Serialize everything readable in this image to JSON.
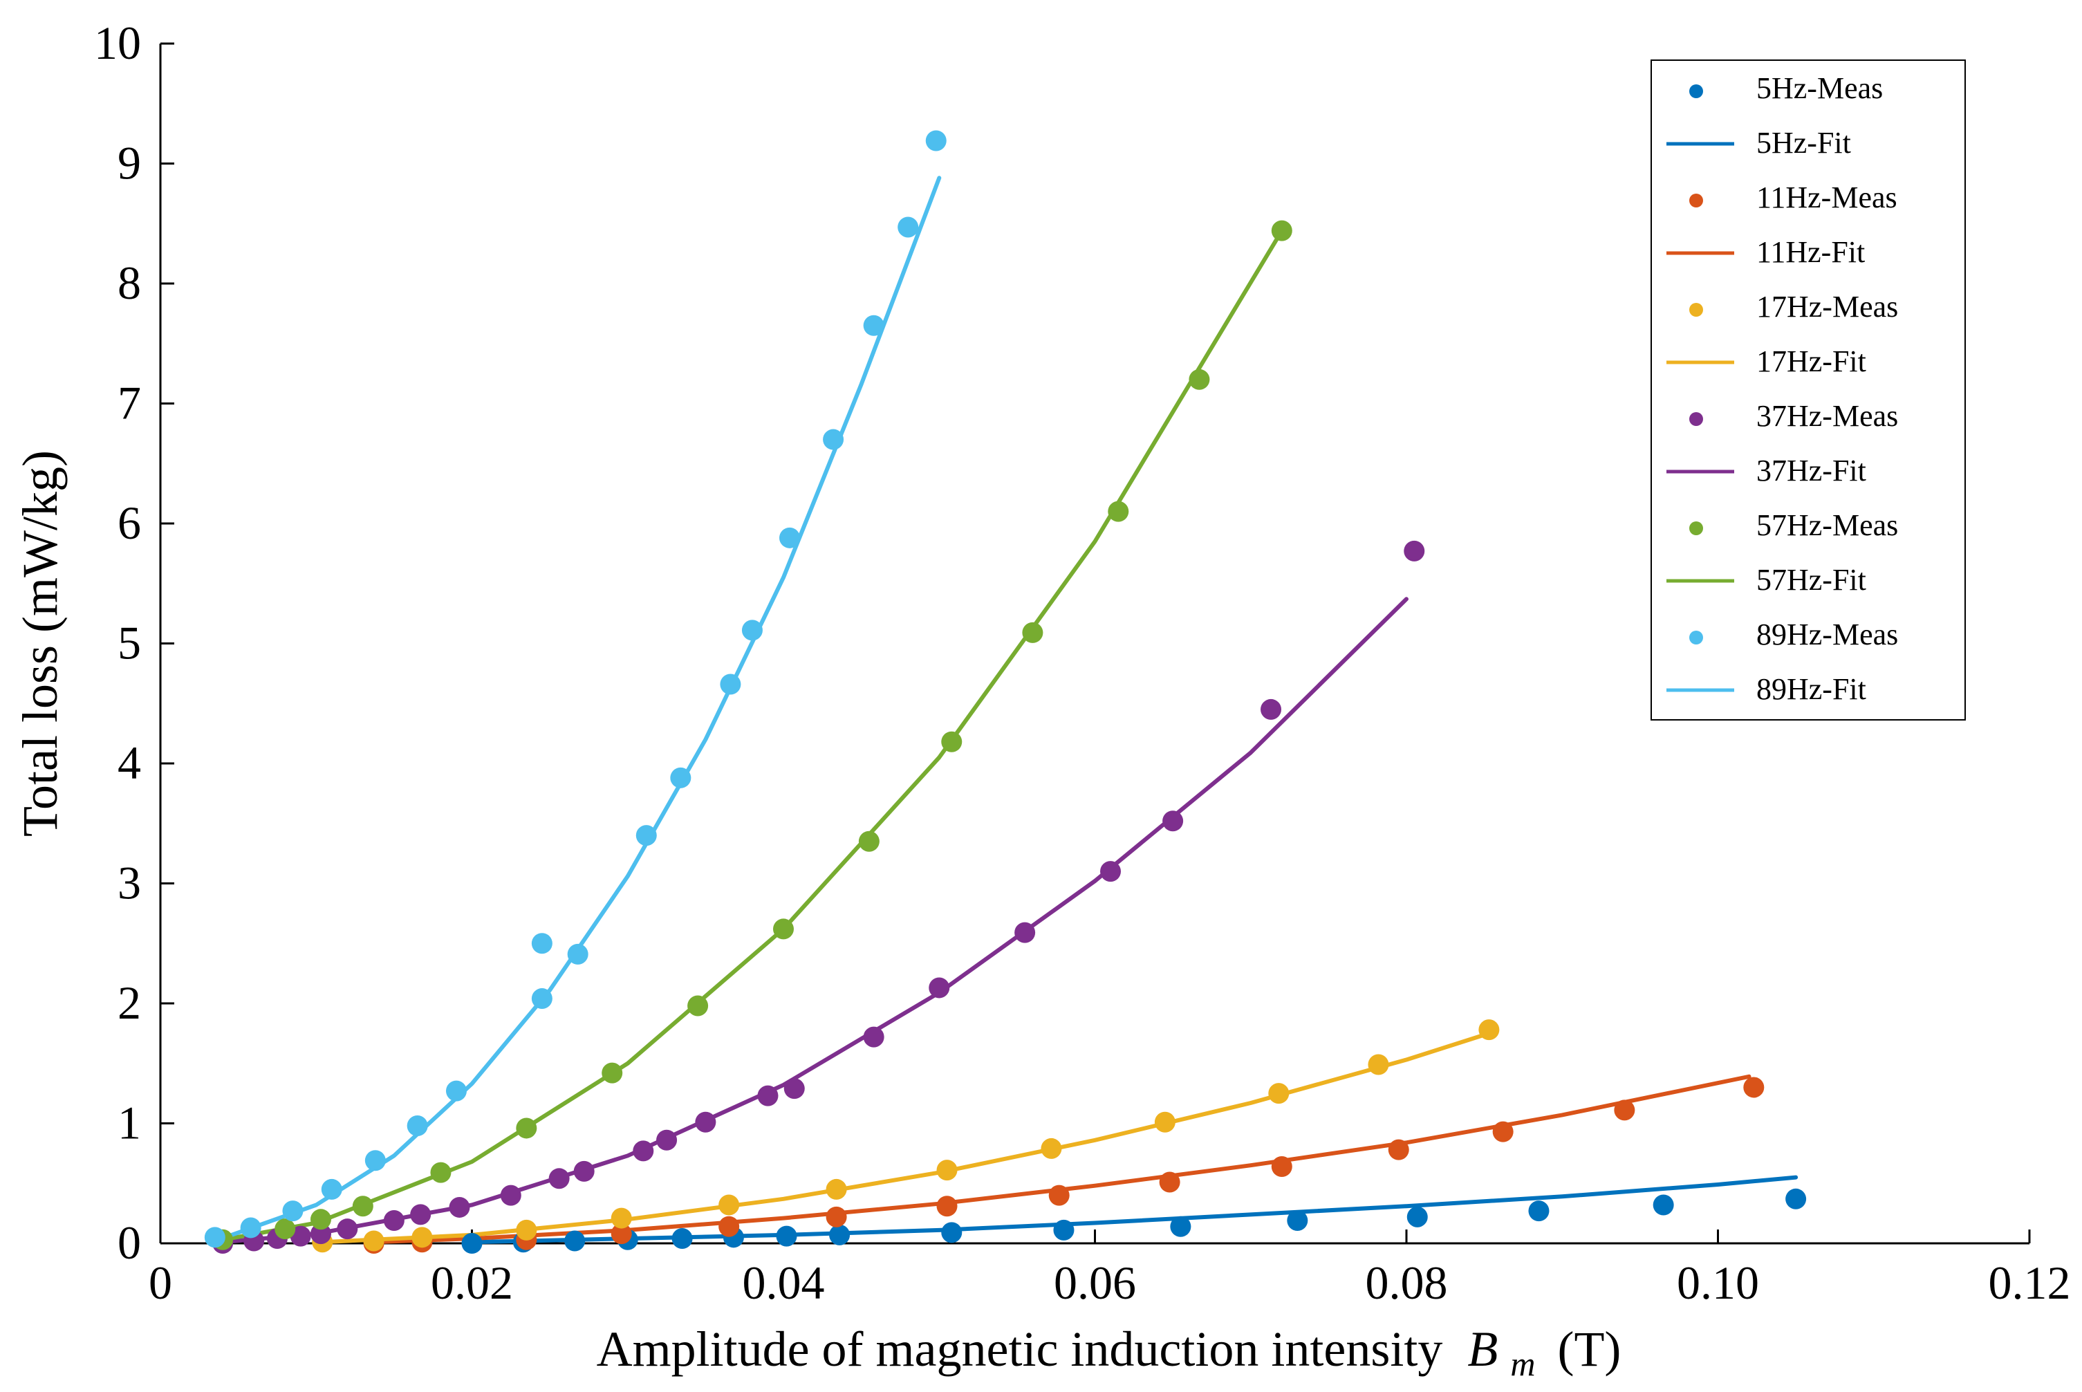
{
  "chart_data": {
    "type": "scatter",
    "xlabel_prefix": "Amplitude of magnetic induction intensity",
    "xlabel_var": "B",
    "xlabel_sub": "m",
    "xlabel_unit": "(T)",
    "ylabel": "Total loss (mW/kg)",
    "xlim": [
      0,
      0.12
    ],
    "ylim": [
      0,
      10
    ],
    "x_ticks": [
      0,
      0.02,
      0.04,
      0.06,
      0.08,
      0.1,
      0.12
    ],
    "x_tick_labels": [
      "0",
      "0.02",
      "0.04",
      "0.06",
      "0.08",
      "0.10",
      "0.12"
    ],
    "y_ticks": [
      0,
      1,
      2,
      3,
      4,
      5,
      6,
      7,
      8,
      9,
      10
    ],
    "y_tick_labels": [
      "0",
      "1",
      "2",
      "3",
      "4",
      "5",
      "6",
      "7",
      "8",
      "9",
      "10"
    ],
    "grid": false,
    "legend_position": "top-right",
    "series": [
      {
        "name": "5Hz",
        "meas_label": "5Hz-Meas",
        "fit_label": "5Hz-Fit",
        "color": "#0072BD",
        "x": [
          0.02,
          0.0233,
          0.0266,
          0.03,
          0.0335,
          0.0368,
          0.0402,
          0.0436,
          0.0508,
          0.058,
          0.0655,
          0.073,
          0.0807,
          0.0885,
          0.0965,
          0.105
        ],
        "y": [
          0.0,
          0.01,
          0.02,
          0.03,
          0.04,
          0.05,
          0.06,
          0.07,
          0.09,
          0.11,
          0.14,
          0.19,
          0.22,
          0.27,
          0.32,
          0.37
        ],
        "fit_x": [
          0.02,
          0.03,
          0.04,
          0.05,
          0.06,
          0.07,
          0.08,
          0.09,
          0.1,
          0.105
        ],
        "fit_y": [
          0.01,
          0.04,
          0.07,
          0.11,
          0.17,
          0.24,
          0.31,
          0.39,
          0.49,
          0.55
        ]
      },
      {
        "name": "11Hz",
        "meas_label": "11Hz-Meas",
        "fit_label": "11Hz-Fit",
        "color": "#D95319",
        "x": [
          0.0137,
          0.0168,
          0.0235,
          0.0296,
          0.0365,
          0.0434,
          0.0505,
          0.0577,
          0.0648,
          0.072,
          0.0795,
          0.0862,
          0.094,
          0.1023
        ],
        "y": [
          0.0,
          0.01,
          0.03,
          0.08,
          0.14,
          0.22,
          0.31,
          0.4,
          0.51,
          0.64,
          0.78,
          0.93,
          1.11,
          1.3
        ],
        "fit_x": [
          0.0137,
          0.02,
          0.03,
          0.04,
          0.05,
          0.06,
          0.07,
          0.08,
          0.09,
          0.102
        ],
        "fit_y": [
          0.01,
          0.04,
          0.11,
          0.21,
          0.33,
          0.48,
          0.65,
          0.84,
          1.07,
          1.39
        ]
      },
      {
        "name": "17Hz",
        "meas_label": "17Hz-Meas",
        "fit_label": "17Hz-Fit",
        "color": "#EDB120",
        "x": [
          0.0104,
          0.0137,
          0.0168,
          0.0235,
          0.0296,
          0.0365,
          0.0434,
          0.0505,
          0.0572,
          0.0645,
          0.0718,
          0.0782,
          0.0853
        ],
        "y": [
          0.01,
          0.02,
          0.05,
          0.11,
          0.21,
          0.32,
          0.45,
          0.61,
          0.79,
          1.01,
          1.25,
          1.49,
          1.78
        ],
        "fit_x": [
          0.0104,
          0.02,
          0.03,
          0.04,
          0.05,
          0.06,
          0.07,
          0.08,
          0.0853
        ],
        "fit_y": [
          0.01,
          0.07,
          0.2,
          0.37,
          0.59,
          0.86,
          1.17,
          1.53,
          1.75
        ]
      },
      {
        "name": "37Hz",
        "meas_label": "37Hz-Meas",
        "fit_label": "37Hz-Fit",
        "color": "#7E2F8E",
        "x": [
          0.004,
          0.006,
          0.0075,
          0.009,
          0.0103,
          0.012,
          0.015,
          0.0167,
          0.0192,
          0.0225,
          0.0256,
          0.0272,
          0.031,
          0.0325,
          0.035,
          0.039,
          0.0407,
          0.0458,
          0.05,
          0.0555,
          0.061,
          0.065,
          0.0713,
          0.0805
        ],
        "y": [
          0.0,
          0.02,
          0.04,
          0.06,
          0.08,
          0.12,
          0.19,
          0.24,
          0.3,
          0.4,
          0.54,
          0.6,
          0.77,
          0.86,
          1.01,
          1.23,
          1.29,
          1.72,
          2.13,
          2.59,
          3.1,
          3.52,
          4.45,
          5.77
        ],
        "fit_x": [
          0.004,
          0.01,
          0.02,
          0.03,
          0.04,
          0.05,
          0.06,
          0.07,
          0.08
        ],
        "fit_y": [
          0.01,
          0.08,
          0.32,
          0.73,
          1.32,
          2.09,
          3.02,
          4.09,
          5.37
        ]
      },
      {
        "name": "57Hz",
        "meas_label": "57Hz-Meas",
        "fit_label": "57Hz-Fit",
        "color": "#77AC30",
        "x": [
          0.004,
          0.008,
          0.0103,
          0.013,
          0.018,
          0.0235,
          0.029,
          0.0345,
          0.04,
          0.0455,
          0.0508,
          0.056,
          0.0615,
          0.0667,
          0.072
        ],
        "y": [
          0.03,
          0.12,
          0.2,
          0.31,
          0.59,
          0.96,
          1.42,
          1.98,
          2.62,
          3.35,
          4.18,
          5.09,
          6.1,
          7.2,
          8.44
        ],
        "fit_x": [
          0.004,
          0.01,
          0.02,
          0.03,
          0.04,
          0.05,
          0.06,
          0.072
        ],
        "fit_y": [
          0.03,
          0.17,
          0.68,
          1.5,
          2.62,
          4.05,
          5.85,
          8.44
        ]
      },
      {
        "name": "89Hz",
        "meas_label": "89Hz-Meas",
        "fit_label": "89Hz-Fit",
        "color": "#4DBEEE",
        "x": [
          0.0035,
          0.0058,
          0.0085,
          0.011,
          0.0138,
          0.0165,
          0.019,
          0.0245,
          0.0245,
          0.0268,
          0.0312,
          0.0334,
          0.0366,
          0.038,
          0.0404,
          0.0432,
          0.0458,
          0.048,
          0.0498
        ],
        "y": [
          0.05,
          0.13,
          0.27,
          0.45,
          0.69,
          0.98,
          1.27,
          2.04,
          2.5,
          2.41,
          3.4,
          3.88,
          4.66,
          5.11,
          5.88,
          6.7,
          7.65,
          8.47,
          9.19
        ],
        "fit_x": [
          0.0035,
          0.01,
          0.015,
          0.02,
          0.025,
          0.03,
          0.035,
          0.04,
          0.045,
          0.05
        ],
        "fit_y": [
          0.02,
          0.32,
          0.73,
          1.33,
          2.11,
          3.06,
          4.2,
          5.55,
          7.16,
          8.88
        ]
      }
    ]
  }
}
